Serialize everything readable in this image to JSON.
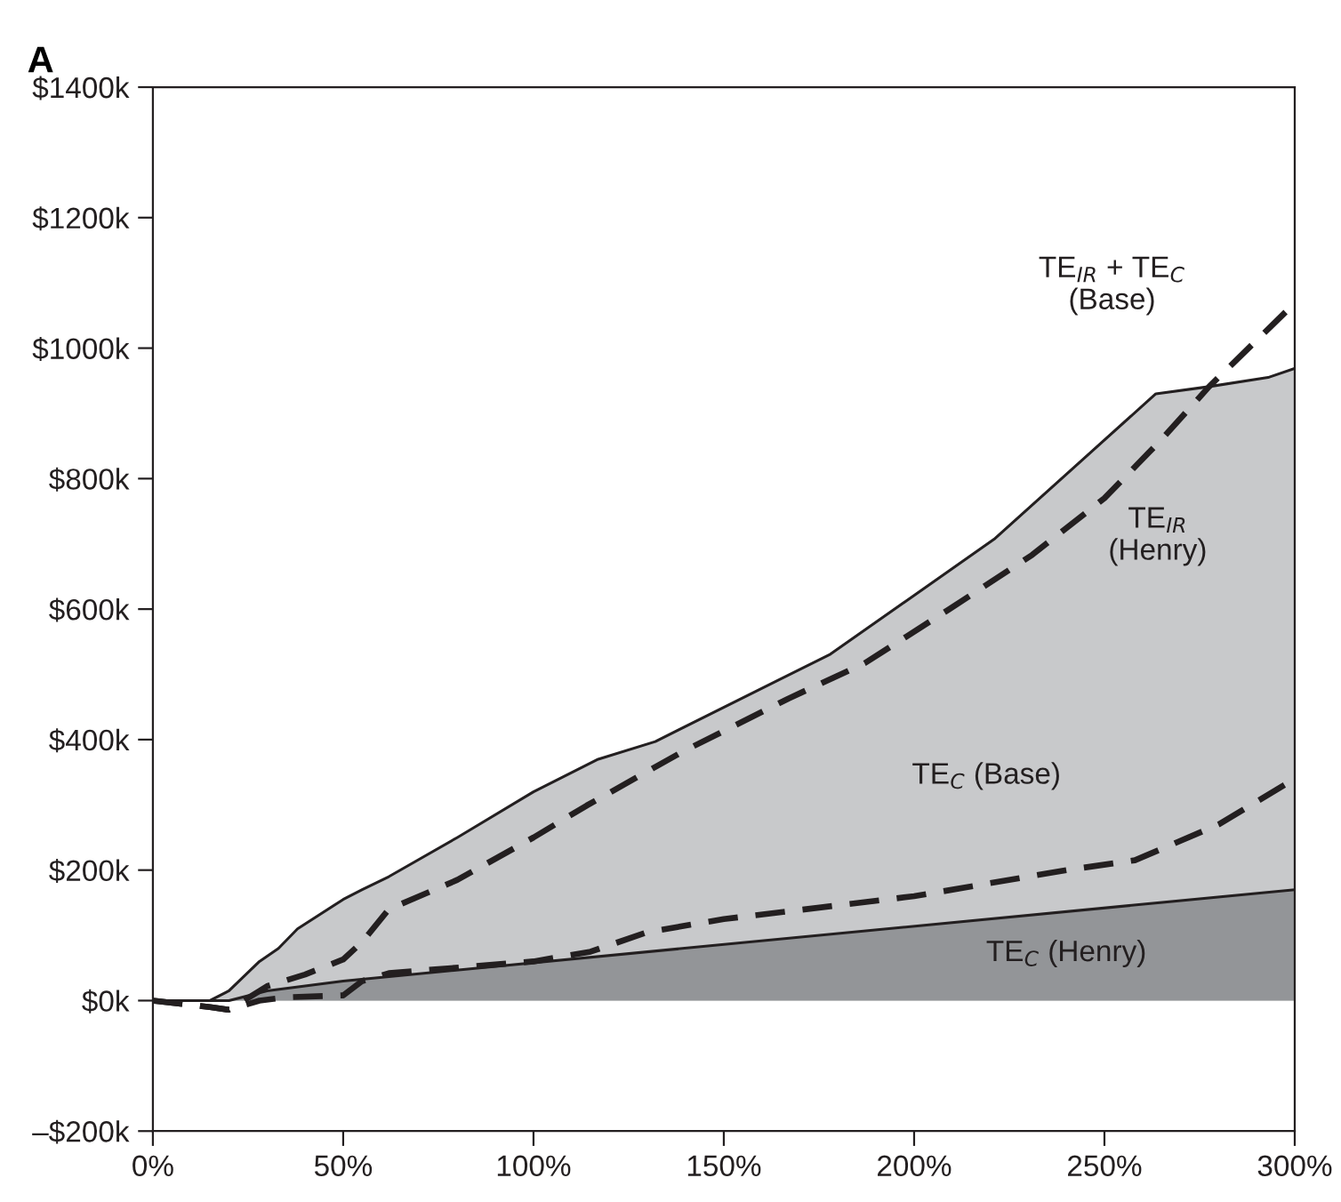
{
  "chart_data": {
    "type": "area",
    "title": "A",
    "series": [
      {
        "name": "TE$_{IR}$\n(Henry)",
        "color": "#c8c9cb",
        "x": [
          0,
          15,
          20,
          28,
          33,
          38,
          50,
          55,
          62,
          80,
          100,
          117,
          132,
          178,
          221,
          263.5,
          277.5,
          293,
          300
        ],
        "values": [
          0,
          0,
          15,
          60,
          80,
          110,
          155,
          170,
          190,
          250,
          320,
          370,
          397,
          531,
          707,
          930,
          941,
          955,
          969
        ]
      },
      {
        "name": "TE$_{C}$ (Henry)",
        "color": "#939598",
        "x": [
          0,
          20,
          30,
          50,
          300
        ],
        "values": [
          0,
          0,
          15,
          30,
          170
        ]
      },
      {
        "name": "TE$_{C}$ (Base)",
        "color": "#231f20",
        "type": "line",
        "line_style": "dashed",
        "x": [
          0,
          15,
          20,
          28,
          35,
          50,
          55,
          62,
          100,
          115,
          130,
          150,
          200,
          240,
          258,
          280,
          300
        ],
        "values": [
          0,
          -10,
          -14,
          0,
          5,
          8,
          30,
          42,
          60,
          75,
          105,
          125,
          160,
          200,
          215,
          270,
          340
        ]
      },
      {
        "name": "TE$_{IR}$ + TE$_{C}$\n(Base)",
        "color": "#231f20",
        "type": "line",
        "line_style": "dashed",
        "x": [
          0,
          15,
          20,
          30,
          40,
          50,
          55,
          62,
          80,
          100,
          114,
          139,
          167,
          187,
          209,
          231,
          250,
          265,
          277.5,
          300
        ],
        "values": [
          0,
          -10,
          -14,
          22,
          40,
          63,
          90,
          140,
          185,
          250,
          299,
          381,
          463,
          517,
          599,
          683,
          770,
          860,
          941,
          1069
        ]
      }
    ],
    "xlim": [
      0,
      300
    ],
    "xticks": [
      {
        "value": 0,
        "label": "0%"
      },
      {
        "value": 50,
        "label": "50%"
      },
      {
        "value": 100,
        "label": "100%"
      },
      {
        "value": 150,
        "label": "150%"
      },
      {
        "value": 200,
        "label": "200%"
      },
      {
        "value": 250,
        "label": "250%"
      },
      {
        "value": 300,
        "label": "300%"
      }
    ],
    "ylim": [
      -200,
      1400
    ],
    "yticks": [
      {
        "value": -200,
        "label": "–$200k"
      },
      {
        "value": 0,
        "label": "$0k"
      },
      {
        "value": 200,
        "label": "$200k"
      },
      {
        "value": 400,
        "label": "$400k"
      },
      {
        "value": 600,
        "label": "$600k"
      },
      {
        "value": 800,
        "label": "$800k"
      },
      {
        "value": 1000,
        "label": "$1000k"
      },
      {
        "value": 1200,
        "label": "$1200k"
      },
      {
        "value": 1400,
        "label": "$1400k"
      }
    ],
    "grid": false,
    "legend": false
  }
}
